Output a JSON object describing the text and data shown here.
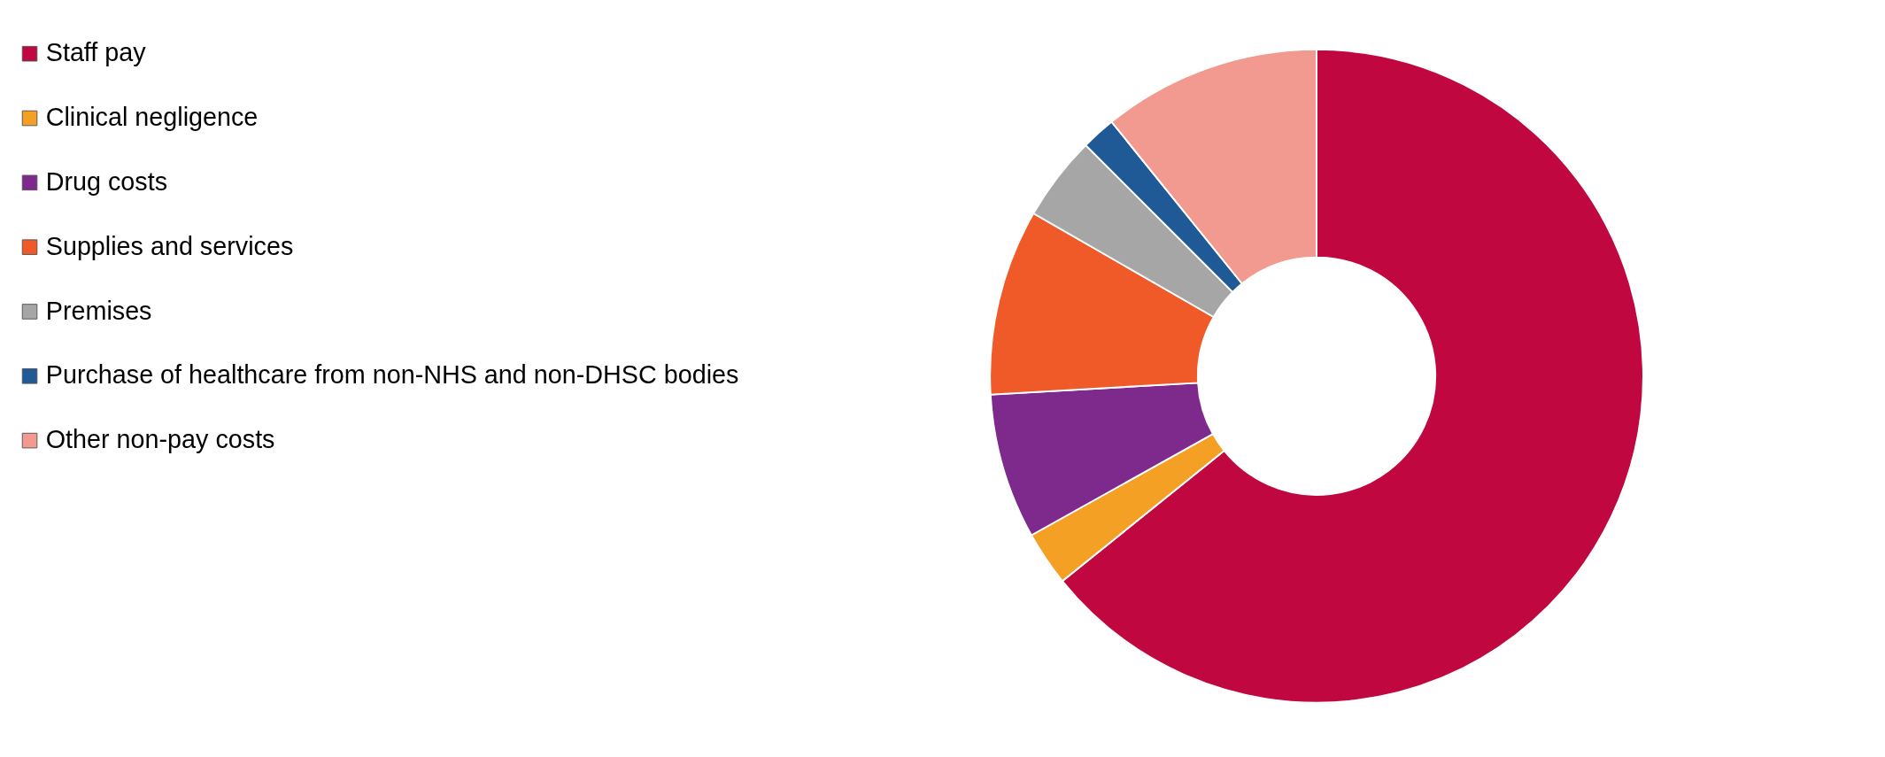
{
  "chart_data": {
    "type": "donut",
    "categories": [
      "Staff pay",
      "Clinical negligence",
      "Drug costs",
      "Supplies and services",
      "Premises",
      "Purchase of healthcare from non-NHS and non-DHSC bodies",
      "Other non-pay costs"
    ],
    "values": [
      64.2,
      2.7,
      7.2,
      9.2,
      4.2,
      1.7,
      10.8
    ],
    "colors": [
      "#c0073f",
      "#f4a025",
      "#7d2a8c",
      "#f05a28",
      "#a6a6a6",
      "#1f5a96",
      "#f29a8f"
    ],
    "legend": "left"
  }
}
